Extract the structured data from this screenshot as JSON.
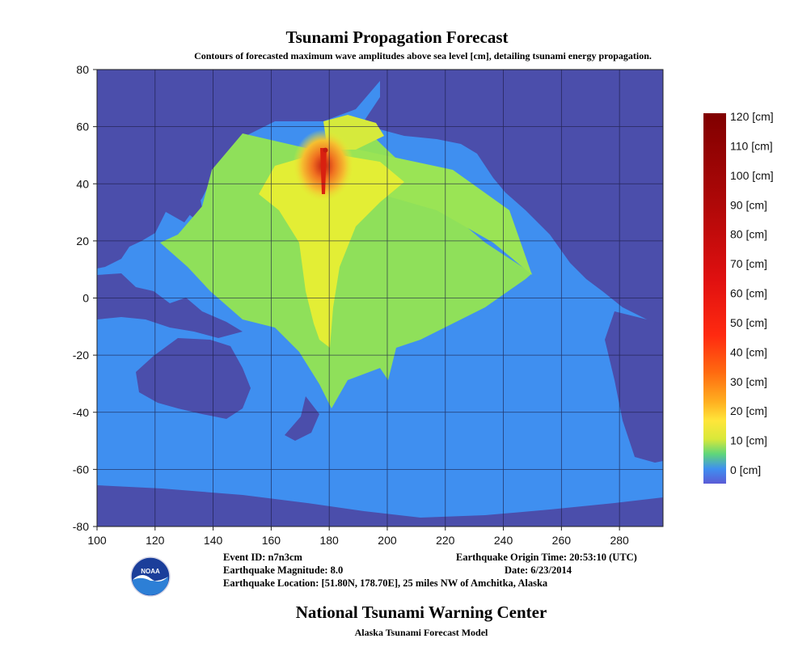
{
  "header": {
    "title": "Tsunami Propagation Forecast",
    "subtitle": "Contours of forecasted maximum wave amplitudes above sea level [cm], detailing tsunami energy propagation."
  },
  "map": {
    "x_ticks": [
      "100",
      "120",
      "140",
      "160",
      "180",
      "200",
      "220",
      "240",
      "260",
      "280"
    ],
    "y_ticks": [
      "80",
      "60",
      "40",
      "20",
      "0",
      "-20",
      "-40",
      "-60",
      "-80"
    ],
    "lon_range": [
      100,
      295
    ],
    "lat_range": [
      -80,
      80
    ],
    "epicenter": {
      "lat": 51.8,
      "lon": 178.7
    },
    "colors": {
      "land": "#4b4eab",
      "ocean": "#3f8ff0",
      "low_wave": "#8fe05a",
      "mid_wave": "#e3ee35",
      "high_wave": "#f5a020",
      "peak": "#c21a10",
      "grid": "#1a1a40"
    }
  },
  "colorbar": {
    "labels": [
      "120 [cm]",
      "110 [cm]",
      "100 [cm]",
      "90 [cm]",
      "80 [cm]",
      "70 [cm]",
      "60 [cm]",
      "50 [cm]",
      "40 [cm]",
      "30 [cm]",
      "20 [cm]",
      "10 [cm]",
      "0 [cm]"
    ],
    "colors": [
      "#5b5bd6",
      "#3f8ff0",
      "#5fd67a",
      "#b8e04a",
      "#ffe63a",
      "#ffb020",
      "#ff6a10",
      "#ff2a10",
      "#e01010",
      "#b00808",
      "#800000"
    ]
  },
  "event": {
    "event_id": "Event ID: n7n3cm",
    "magnitude": "Earthquake Magnitude: 8.0",
    "location": "Earthquake Location: [51.80N, 178.70E], 25 miles NW of Amchitka, Alaska",
    "origin_time": "Earthquake Origin Time: 20:53:10 (UTC)",
    "date": "Date: 6/23/2014"
  },
  "footer": {
    "title": "National Tsunami Warning Center",
    "subtitle": "Alaska Tsunami Forecast Model",
    "logo_text": "NOAA"
  }
}
